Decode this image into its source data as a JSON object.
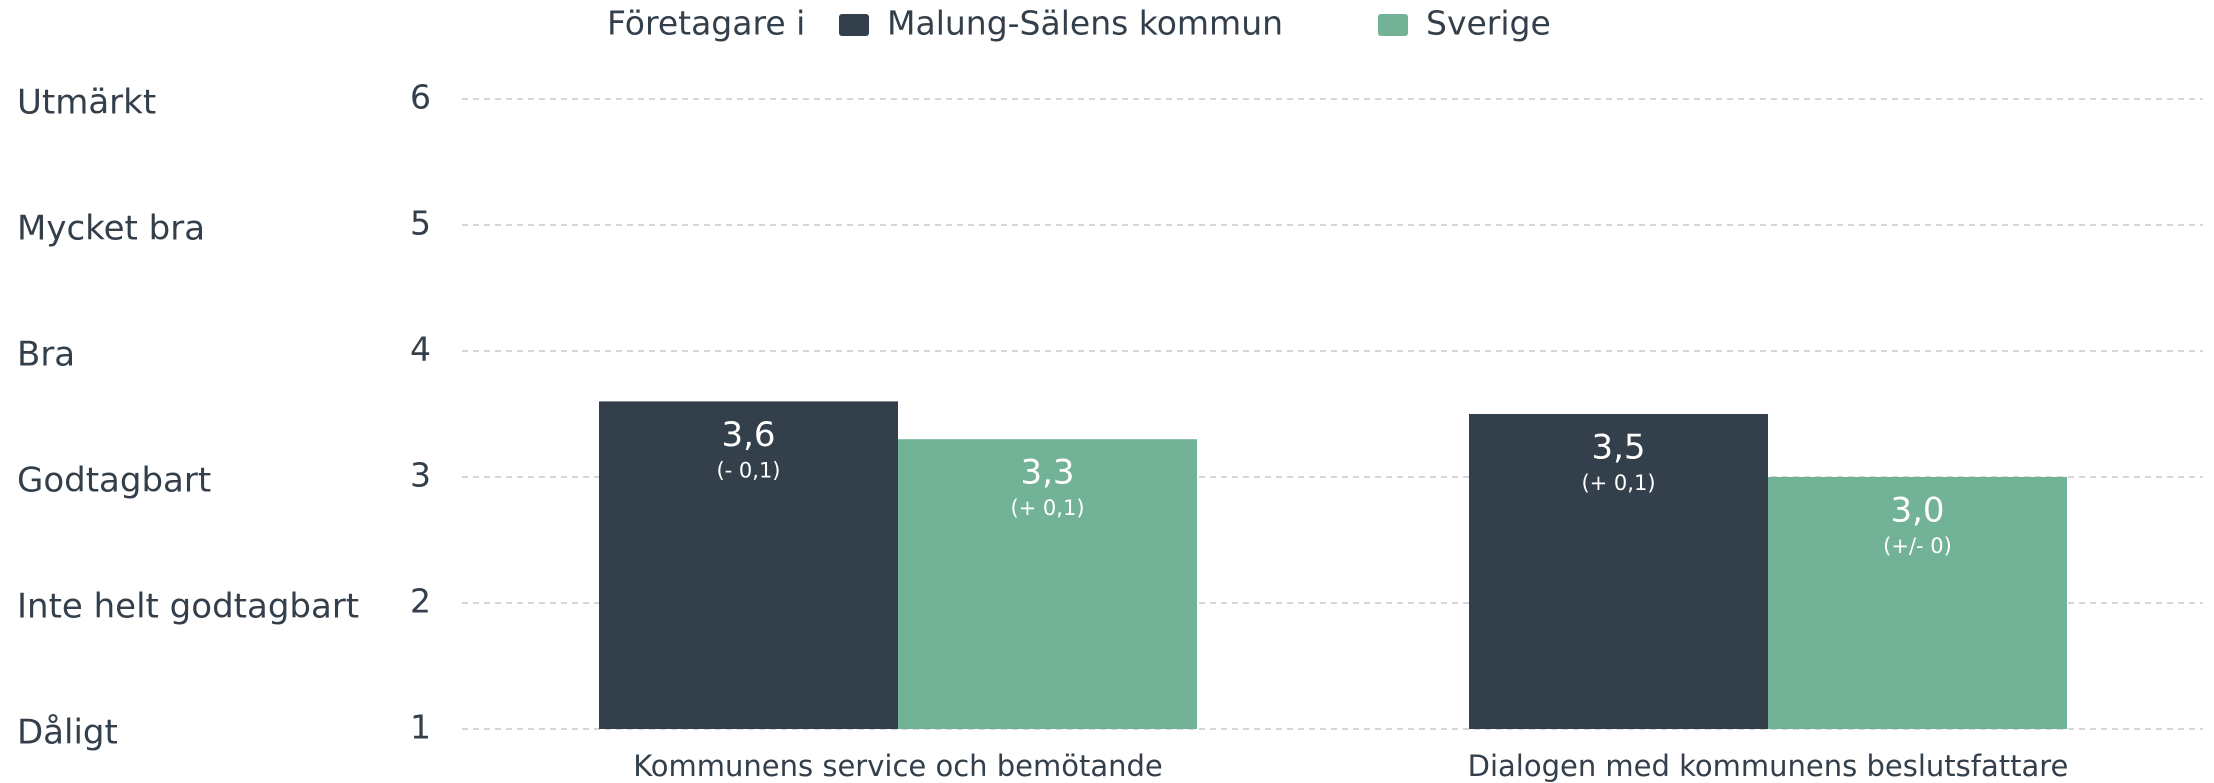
{
  "chart_data": {
    "type": "bar",
    "legend_title": "Företagare i",
    "categories": [
      "Kommunens service och bemötande",
      "Dialogen med kommunens beslutsfattare"
    ],
    "series": [
      {
        "name": "Malung-Sälens kommun",
        "color": "#333f4b",
        "values": [
          3.6,
          3.5
        ],
        "value_labels": [
          "3,6",
          "3,5"
        ],
        "change_labels": [
          "(- 0,1)",
          "(+ 0,1)"
        ]
      },
      {
        "name": "Sverige",
        "color": "#72b397",
        "values": [
          3.3,
          3.0
        ],
        "value_labels": [
          "3,3",
          "3,0"
        ],
        "change_labels": [
          "(+ 0,1)",
          "(+/- 0)"
        ]
      }
    ],
    "ylim": [
      1,
      6
    ],
    "yticks": [
      1,
      2,
      3,
      4,
      5,
      6
    ],
    "ytick_names": [
      "Dåligt",
      "Inte helt godtagbart",
      "Godtagbart",
      "Bra",
      "Mycket bra",
      "Utmärkt"
    ],
    "grid": true
  }
}
